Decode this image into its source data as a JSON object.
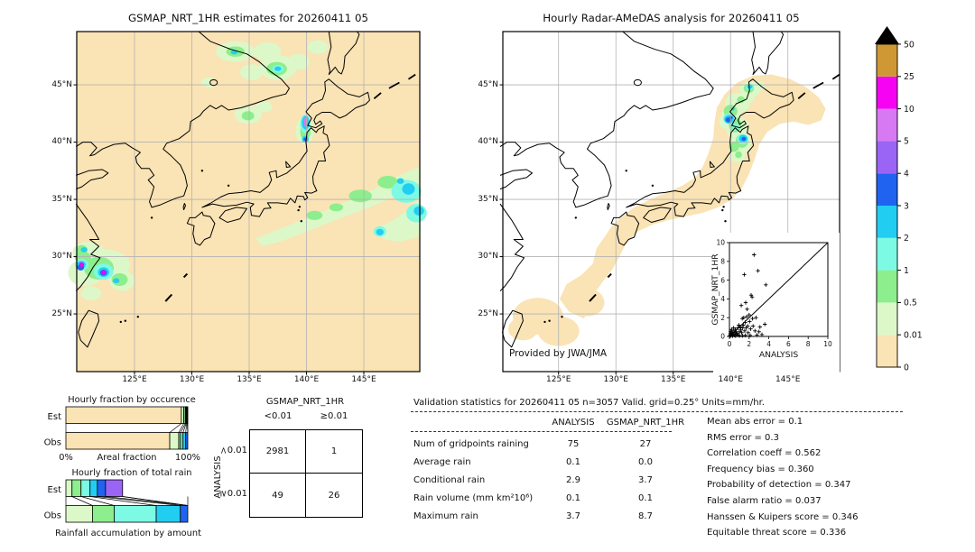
{
  "colors": {
    "peach": "#fae3b4",
    "palegreen": "#dcf8c8",
    "green": "#8cee8c",
    "aqua": "#7cfae4",
    "cyan": "#22cdf2",
    "blue": "#1f63f0",
    "purple": "#9a65f5",
    "orchid": "#d779f2",
    "magenta": "#f503f2",
    "gold": "#cf9834",
    "overflow": "#000000",
    "grid": "#b3b3b3"
  },
  "chart_data": [
    {
      "type": "heatmap",
      "name": "gsmap-precip-map",
      "title": "GSMAP_NRT_1HR estimates for 20260411 05",
      "lon_ticks": [
        "125°E",
        "130°E",
        "135°E",
        "140°E",
        "145°E"
      ],
      "lat_ticks": [
        "45°N",
        "40°N",
        "35°N",
        "30°N",
        "25°N"
      ],
      "lon_tick_values": [
        125,
        130,
        135,
        140,
        145
      ],
      "lat_tick_values": [
        45,
        40,
        35,
        30,
        25
      ],
      "lon_range": [
        120,
        149.9
      ],
      "lat_range": [
        20,
        49.65
      ]
    },
    {
      "type": "heatmap",
      "name": "radar-amedas-map",
      "title": "Hourly Radar-AMeDAS analysis for 20260411 05",
      "credit": "Provided by JWA/JMA",
      "lon_ticks": [
        "125°E",
        "130°E",
        "135°E",
        "140°E",
        "145°E"
      ],
      "lat_ticks": [
        "45°N",
        "40°N",
        "35°N",
        "30°N",
        "25°N"
      ],
      "lon_tick_values": [
        125,
        130,
        135,
        140,
        145
      ],
      "lat_tick_values": [
        45,
        40,
        35,
        30,
        25
      ],
      "lon_range": [
        120.1,
        149.6
      ],
      "lat_range": [
        20,
        49.65
      ]
    },
    {
      "type": "heatmap",
      "name": "rainrate-colorbar",
      "tick_labels": [
        "0",
        "0.01",
        "0.5",
        "1",
        "2",
        "3",
        "4",
        "5",
        "10",
        "25",
        "50"
      ],
      "segment_colors": [
        "#fae3b4",
        "#dcf8c8",
        "#8cee8c",
        "#7cfae4",
        "#22cdf2",
        "#1f63f0",
        "#9a65f5",
        "#d779f2",
        "#f503f2",
        "#cf9834"
      ],
      "overflow_color": "#000000"
    },
    {
      "type": "bar",
      "name": "hourly-fraction-by-occurrence",
      "title": "Hourly fraction by occurence",
      "categories": [
        "Est",
        "Obs"
      ],
      "xlabel": "Areal fraction",
      "x_min_label": "0%",
      "x_max_label": "100%",
      "bins": [
        "0",
        "0.01-0.5",
        "0.5-1",
        "1-2",
        "2-3",
        "3-4",
        "4-5",
        "5-10"
      ],
      "series": [
        {
          "name": "Est",
          "values": [
            94.7,
            2.0,
            1.3,
            0.6,
            0.5,
            0.4,
            0.3,
            0.2
          ]
        },
        {
          "name": "Obs",
          "values": [
            85.2,
            7.4,
            1.5,
            2.0,
            2.2,
            1.7
          ]
        }
      ]
    },
    {
      "type": "bar",
      "name": "hourly-fraction-of-total-rain",
      "title": "Hourly fraction of total rain",
      "caption": "Rainfall accumulation by amount",
      "categories": [
        "Est",
        "Obs"
      ],
      "bins": [
        "0.01-0.5",
        "0.5-1",
        "1-2",
        "2-3",
        "3-4",
        "4-10"
      ],
      "series": [
        {
          "name": "Est",
          "values": [
            5.0,
            7.4,
            7.4,
            6.0,
            6.7,
            14.0
          ]
        },
        {
          "name": "Obs",
          "values": [
            21.8,
            17.8,
            34.5,
            19.8,
            6.1,
            0
          ]
        }
      ]
    },
    {
      "type": "table",
      "name": "contingency-table",
      "col_group": "GSMAP_NRT_1HR",
      "row_group": "ANALYSIS",
      "col_labels": [
        "<0.01",
        "≥0.01"
      ],
      "row_labels": [
        "<0.01",
        "≥0.01"
      ],
      "values": [
        [
          2981,
          1
        ],
        [
          49,
          26
        ]
      ]
    },
    {
      "type": "table",
      "name": "validation-statistics",
      "title": "Validation statistics for 20260411 05  n=3057 Valid. grid=0.25° Units=mm/hr.",
      "columns": [
        "ANALYSIS",
        "GSMAP_NRT_1HR"
      ],
      "rows": [
        [
          "Num of gridpoints raining",
          "75",
          "27"
        ],
        [
          "Average rain",
          "0.1",
          "0.0"
        ],
        [
          "Conditional rain",
          "2.9",
          "3.7"
        ],
        [
          "Rain volume (mm km²10⁶)",
          "0.1",
          "0.1"
        ],
        [
          "Maximum rain",
          "3.7",
          "8.7"
        ]
      ],
      "scores": [
        [
          "Mean abs error",
          "0.1"
        ],
        [
          "RMS error",
          "0.3"
        ],
        [
          "Correlation coeff",
          "0.562"
        ],
        [
          "Frequency bias",
          "0.360"
        ],
        [
          "Probability of detection",
          "0.347"
        ],
        [
          "False alarm ratio",
          "0.037"
        ],
        [
          "Hanssen & Kuipers score",
          "0.346"
        ],
        [
          "Equitable threat score",
          "0.336"
        ]
      ]
    },
    {
      "type": "scatter",
      "name": "gsmap-vs-analysis-scatter",
      "xlabel": "ANALYSIS",
      "ylabel": "GSMAP_NRT_1HR",
      "xlim": [
        0,
        10
      ],
      "ylim": [
        0,
        10
      ],
      "ticks": [
        0,
        2,
        4,
        6,
        8,
        10
      ],
      "marker": "+",
      "points": [
        [
          0.05,
          0.05
        ],
        [
          0.08,
          0.3
        ],
        [
          0.1,
          0.15
        ],
        [
          0.12,
          0.55
        ],
        [
          0.15,
          0.08
        ],
        [
          0.2,
          0.35
        ],
        [
          0.22,
          0.75
        ],
        [
          0.25,
          0.15
        ],
        [
          0.3,
          0.45
        ],
        [
          0.32,
          0.06
        ],
        [
          0.4,
          0.25
        ],
        [
          0.42,
          0.9
        ],
        [
          0.45,
          0.6
        ],
        [
          0.5,
          0.12
        ],
        [
          0.55,
          0.4
        ],
        [
          0.6,
          0.75
        ],
        [
          0.62,
          0.06
        ],
        [
          0.65,
          0.22
        ],
        [
          0.7,
          0.5
        ],
        [
          0.78,
          0.32
        ],
        [
          0.85,
          0.9
        ],
        [
          0.9,
          0.15
        ],
        [
          0.95,
          1.2
        ],
        [
          1.0,
          0.5
        ],
        [
          1.02,
          0.07
        ],
        [
          1.1,
          1.0
        ],
        [
          1.15,
          0.7
        ],
        [
          1.2,
          3.3
        ],
        [
          1.25,
          0.4
        ],
        [
          1.3,
          1.9
        ],
        [
          1.32,
          0.08
        ],
        [
          1.35,
          0.9
        ],
        [
          1.4,
          1.2
        ],
        [
          1.45,
          2.0
        ],
        [
          1.5,
          6.6
        ],
        [
          1.55,
          0.6
        ],
        [
          1.6,
          1.5
        ],
        [
          1.62,
          0.12
        ],
        [
          1.65,
          3.6
        ],
        [
          1.7,
          0.9
        ],
        [
          1.75,
          2.1
        ],
        [
          1.8,
          2.9
        ],
        [
          1.85,
          1.1
        ],
        [
          1.9,
          0.4
        ],
        [
          2.0,
          2.3
        ],
        [
          2.05,
          1.6
        ],
        [
          2.1,
          0.12
        ],
        [
          2.15,
          0.8
        ],
        [
          2.2,
          4.4
        ],
        [
          2.3,
          4.2
        ],
        [
          2.35,
          1.9
        ],
        [
          2.4,
          1.1
        ],
        [
          2.5,
          8.7
        ],
        [
          2.6,
          0.6
        ],
        [
          2.7,
          2.0
        ],
        [
          2.8,
          0.15
        ],
        [
          2.9,
          7.0
        ],
        [
          3.0,
          0.5
        ],
        [
          3.1,
          1.0
        ],
        [
          3.3,
          0.2
        ],
        [
          3.6,
          1.3
        ],
        [
          3.7,
          5.5
        ]
      ]
    }
  ]
}
